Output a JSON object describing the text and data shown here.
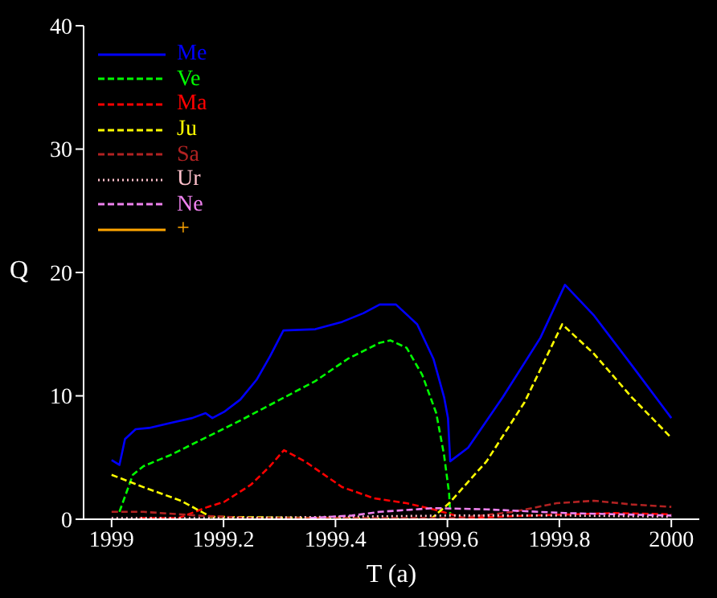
{
  "chart_data": {
    "type": "line",
    "xlabel": "T (a)",
    "ylabel": "Q",
    "xlim": [
      1998.95,
      2000.05
    ],
    "xticks": [
      1999,
      1999.2,
      1999.4,
      1999.6,
      1999.8,
      2000
    ],
    "ylim": [
      0,
      40
    ],
    "yticks": [
      0,
      10,
      20,
      30,
      40
    ],
    "legend": "top left",
    "marker": "none",
    "series": [
      {
        "name": "Me",
        "color": "#0000ff",
        "line_style": "solid",
        "x": [
          1999.0,
          1999.014,
          1999.024,
          1999.043,
          1999.067,
          1999.105,
          1999.144,
          1999.168,
          1999.18,
          1999.201,
          1999.23,
          1999.259,
          1999.283,
          1999.307,
          1999.364,
          1999.412,
          1999.45,
          1999.479,
          1999.508,
          1999.546,
          1999.575,
          1999.594,
          1999.601,
          1999.605,
          1999.637,
          1999.699,
          1999.766,
          1999.81,
          1999.862,
          1999.929,
          2000.0
        ],
        "values": [
          4.8,
          4.4,
          6.5,
          7.3,
          7.4,
          7.8,
          8.2,
          8.6,
          8.2,
          8.7,
          9.7,
          11.3,
          13.2,
          15.3,
          15.4,
          16.0,
          16.7,
          17.4,
          17.4,
          15.8,
          13.0,
          9.9,
          8.2,
          4.7,
          5.8,
          9.9,
          14.7,
          19.0,
          16.5,
          12.5,
          8.2
        ]
      },
      {
        "name": "Ve",
        "color": "#00ff00",
        "line_style": "dashed",
        "x": [
          1999.014,
          1999.038,
          1999.057,
          1999.105,
          1999.172,
          1999.23,
          1999.297,
          1999.364,
          1999.422,
          1999.479,
          1999.498,
          1999.527,
          1999.555,
          1999.58,
          1999.594,
          1999.603,
          1999.605
        ],
        "values": [
          0.6,
          3.6,
          4.3,
          5.2,
          6.7,
          8.0,
          9.6,
          11.2,
          13.0,
          14.3,
          14.5,
          13.9,
          11.7,
          8.6,
          5.2,
          2.1,
          0.4
        ]
      },
      {
        "name": "Ma",
        "color": "#ff0000",
        "line_style": "dashed",
        "x": [
          1999.05,
          1999.12,
          1999.172,
          1999.201,
          1999.249,
          1999.283,
          1999.308,
          1999.345,
          1999.412,
          1999.469,
          1999.527,
          1999.575,
          1999.63,
          1999.75,
          1999.9,
          2000.0
        ],
        "values": [
          0.1,
          0.1,
          1.0,
          1.4,
          2.8,
          4.3,
          5.6,
          4.7,
          2.6,
          1.7,
          1.3,
          0.8,
          0.1,
          0.3,
          0.5,
          0.4
        ]
      },
      {
        "name": "Ju",
        "color": "#ffff00",
        "line_style": "dashed",
        "x": [
          1999.0,
          1999.057,
          1999.124,
          1999.177,
          1999.57,
          1999.603,
          1999.67,
          1999.738,
          1999.805,
          1999.862,
          1999.929,
          2000.0
        ],
        "values": [
          3.6,
          2.6,
          1.5,
          0.2,
          0.0,
          1.3,
          4.7,
          9.5,
          15.8,
          13.4,
          9.9,
          6.6
        ]
      },
      {
        "name": "Sa",
        "color": "#b22222",
        "line_style": "dashed",
        "x": [
          1999.0,
          1999.057,
          1999.153,
          1999.249,
          1999.623,
          1999.718,
          1999.795,
          1999.862,
          1999.929,
          2000.0
        ],
        "values": [
          0.6,
          0.6,
          0.3,
          0.1,
          0.1,
          0.6,
          1.3,
          1.5,
          1.2,
          1.0
        ]
      },
      {
        "name": "Ur",
        "color": "#ffc0cb",
        "line_style": "dotted",
        "x": [
          1999.0,
          1999.2,
          1999.4,
          1999.6,
          1999.8,
          2000.0
        ],
        "values": [
          0.1,
          0.1,
          0.2,
          0.3,
          0.3,
          0.2
        ]
      },
      {
        "name": "Ne",
        "color": "#ee82ee",
        "line_style": "dashed",
        "x": [
          1999.355,
          1999.43,
          1999.479,
          1999.575,
          1999.67,
          1999.81,
          2000.0
        ],
        "values": [
          0.1,
          0.3,
          0.6,
          0.9,
          0.8,
          0.5,
          0.3
        ]
      },
      {
        "name": "+",
        "color": "#ffa500",
        "line_style": "solid"
      }
    ]
  }
}
